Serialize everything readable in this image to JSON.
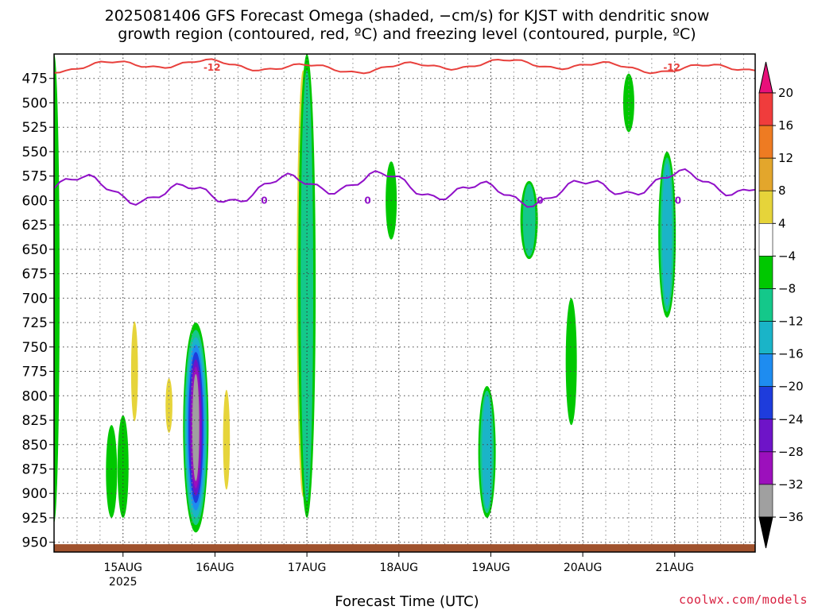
{
  "title_line1": "2025081406 GFS Forecast Omega (shaded, −cm/s) for KJST with dendritic snow",
  "title_line2": "growth region (contoured, red, ºC) and freezing level (contoured, purple, ºC)",
  "xlabel": "Forecast Time (UTC)",
  "credit": "coolwx.com/models",
  "chart_data": {
    "type": "heatmap",
    "x_axis": {
      "type": "time",
      "range_hours_utc": [
        "2025-08-14T06",
        "2025-08-21T21"
      ],
      "ticks": [
        {
          "label": "15AUG",
          "sub": "2025",
          "value": "2025-08-15T00"
        },
        {
          "label": "16AUG",
          "value": "2025-08-16T00"
        },
        {
          "label": "17AUG",
          "value": "2025-08-17T00"
        },
        {
          "label": "18AUG",
          "value": "2025-08-18T00"
        },
        {
          "label": "19AUG",
          "value": "2025-08-19T00"
        },
        {
          "label": "20AUG",
          "value": "2025-08-20T00"
        },
        {
          "label": "21AUG",
          "value": "2025-08-21T00"
        }
      ]
    },
    "y_axis": {
      "units": "hPa",
      "inverted": true,
      "range": [
        960,
        450
      ],
      "ticks": [
        475,
        500,
        525,
        550,
        575,
        600,
        625,
        650,
        675,
        700,
        725,
        750,
        775,
        800,
        825,
        850,
        875,
        900,
        925,
        950
      ],
      "grid": "dotted"
    },
    "colorbar": {
      "labels": [
        "20",
        "16",
        "12",
        "8",
        "4",
        "−4",
        "−8",
        "−12",
        "−16",
        "−20",
        "−24",
        "−28",
        "−32",
        "−36"
      ],
      "colors": [
        "#e8107a",
        "#f03c3c",
        "#ee7b22",
        "#e3a62c",
        "#e6d43a",
        "#ffffff",
        "#00c800",
        "#14c88a",
        "#1ab4c8",
        "#1e8cf0",
        "#1e3cdc",
        "#6e14c8",
        "#9c10bc",
        "#a0a0a0",
        "#000000"
      ]
    },
    "omega_regions": [
      {
        "t": "2025-08-14T06",
        "p_top": 450,
        "p_bottom": 930,
        "value": -4
      },
      {
        "t": "2025-08-14T21",
        "p_top": 830,
        "p_bottom": 925,
        "value": -6
      },
      {
        "t": "2025-08-15T00",
        "p_top": 820,
        "p_bottom": 925,
        "value": -6
      },
      {
        "t": "2025-08-15T03",
        "p_top": 720,
        "p_bottom": 830,
        "value": 5
      },
      {
        "t": "2025-08-15T12",
        "p_top": 780,
        "p_bottom": 840,
        "value": 5
      },
      {
        "t": "2025-08-15T19",
        "p_top": 725,
        "p_bottom": 940,
        "value": -34
      },
      {
        "t": "2025-08-16T03",
        "p_top": 790,
        "p_bottom": 900,
        "value": 6
      },
      {
        "t": "2025-08-16T23",
        "p_top": 450,
        "p_bottom": 920,
        "value": 10
      },
      {
        "t": "2025-08-17T00",
        "p_top": 450,
        "p_bottom": 925,
        "value": -10
      },
      {
        "t": "2025-08-17T22",
        "p_top": 560,
        "p_bottom": 640,
        "value": -5
      },
      {
        "t": "2025-08-18T23",
        "p_top": 790,
        "p_bottom": 925,
        "value": -13
      },
      {
        "t": "2025-08-19T10",
        "p_top": 580,
        "p_bottom": 660,
        "value": -11
      },
      {
        "t": "2025-08-19T21",
        "p_top": 700,
        "p_bottom": 830,
        "value": -7
      },
      {
        "t": "2025-08-20T12",
        "p_top": 470,
        "p_bottom": 530,
        "value": -6
      },
      {
        "t": "2025-08-20T22",
        "p_top": 550,
        "p_bottom": 720,
        "value": -12
      }
    ],
    "dgz_contour": {
      "label": "-12",
      "color": "#e8403c",
      "p_range": [
        455,
        470
      ]
    },
    "freezing_level": {
      "label": "0",
      "color": "#9010c8",
      "p_range": [
        565,
        610
      ]
    },
    "surface_fill_color": "#a0522d"
  }
}
